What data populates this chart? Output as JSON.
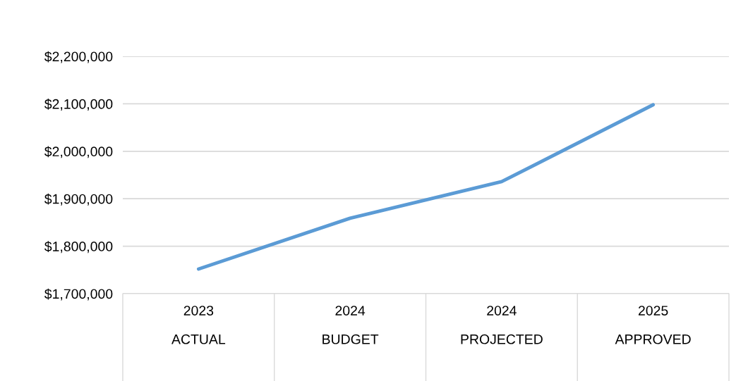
{
  "chart_data": {
    "type": "line",
    "categories": [
      "2023\nACTUAL",
      "2024\nBUDGET",
      "2024\nPROJECTED",
      "2025\nAPPROVED"
    ],
    "series": [
      {
        "color": "#5b9bd5",
        "values": [
          1752000,
          1859000,
          1936000,
          2098000
        ]
      }
    ],
    "ylim": [
      1700000,
      2200000
    ],
    "yticks": [
      {
        "value": 1700000,
        "label": "$1,700,000"
      },
      {
        "value": 1800000,
        "label": "$1,800,000"
      },
      {
        "value": 1900000,
        "label": "$1,900,000"
      },
      {
        "value": 2000000,
        "label": "$2,000,000"
      },
      {
        "value": 2100000,
        "label": "$2,100,000"
      },
      {
        "value": 2200000,
        "label": "$2,200,000"
      }
    ],
    "grid": "y",
    "marker": "none",
    "line_style": "solid"
  }
}
